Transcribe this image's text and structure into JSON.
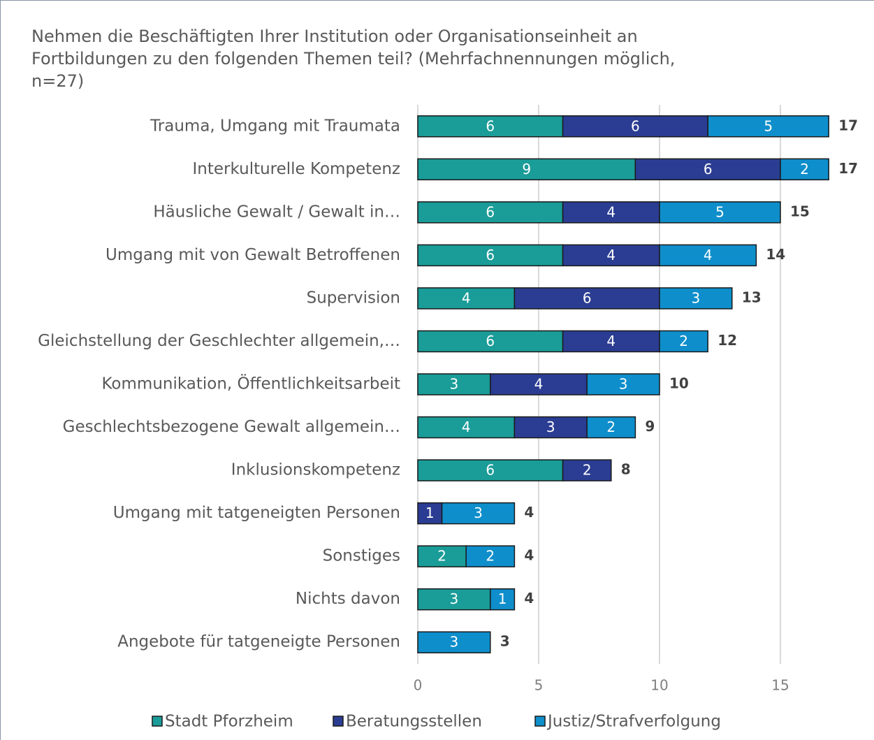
{
  "chart_data": {
    "type": "stacked-bar-horizontal",
    "title": "Nehmen die Beschäftigten Ihrer Institution oder Organisationseinheit an Fortbildungen zu den folgenden Themen teil? (Mehrfachnennungen möglich, n=27)",
    "categories": [
      "Trauma, Umgang mit Traumata",
      "Interkulturelle Kompetenz",
      "Häusliche Gewalt / Gewalt in…",
      "Umgang mit von Gewalt Betroffenen",
      "Supervision",
      "Gleichstellung der Geschlechter allgemein,…",
      "Kommunikation, Öffentlichkeitsarbeit",
      "Geschlechtsbezogene Gewalt allgemein…",
      "Inklusionskompetenz",
      "Umgang mit tatgeneigten Personen",
      "Sonstiges",
      "Nichts davon",
      "Angebote für tatgeneigte Personen"
    ],
    "series": [
      {
        "name": "Stadt Pforzheim",
        "color": "#1a9c98",
        "values": [
          6,
          9,
          6,
          6,
          4,
          6,
          3,
          4,
          6,
          null,
          2,
          3,
          null
        ]
      },
      {
        "name": "Beratungsstellen",
        "color": "#2b3d92",
        "values": [
          6,
          6,
          4,
          4,
          6,
          4,
          4,
          3,
          2,
          1,
          null,
          null,
          null
        ]
      },
      {
        "name": "Justiz/Strafverfolgung",
        "color": "#0e8ecb",
        "values": [
          5,
          2,
          5,
          4,
          3,
          2,
          3,
          2,
          null,
          3,
          2,
          1,
          3
        ]
      }
    ],
    "totals": [
      17,
      17,
      15,
      14,
      13,
      12,
      10,
      9,
      8,
      4,
      4,
      4,
      3
    ],
    "xlim": [
      0,
      18
    ],
    "xticks": [
      0,
      5,
      10,
      15
    ],
    "grid": true,
    "legend": "bottom"
  }
}
